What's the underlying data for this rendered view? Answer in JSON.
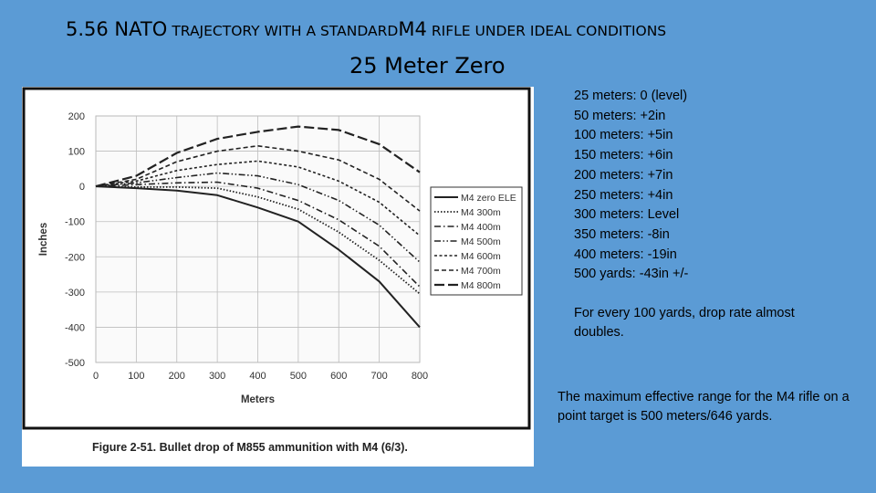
{
  "title": {
    "part1": "5.56 NATO",
    "part2": "TRAJECTORY WITH A STANDARD",
    "part3": "M4",
    "part4": "RIFLE UNDER IDEAL CONDITIONS"
  },
  "subtitle": "25 Meter Zero",
  "notes": {
    "drops": [
      "25 meters: 0 (level)",
      "50 meters: +2in",
      "100 meters: +5in",
      "150 meters: +6in",
      "200 meters: +7in",
      "250 meters: +4in",
      "300 meters: Level",
      "350 meters: -8in",
      "400 meters: -19in",
      "500 yards: -43in +/-"
    ],
    "drop_rate": "For every 100 yards, drop rate almost doubles.",
    "effective_range": "The maximum effective range for the M4 rifle on a point target is 500 meters/646 yards."
  },
  "chart_data": {
    "type": "line",
    "title": "",
    "caption": "Figure 2-51. Bullet drop of M855 ammunition with M4 (6/3).",
    "xlabel": "Meters",
    "ylabel": "Inches",
    "xlim": [
      0,
      800
    ],
    "ylim": [
      -500,
      200
    ],
    "x_ticks": [
      "0",
      "100",
      "200",
      "300",
      "400",
      "500",
      "600",
      "700",
      "800"
    ],
    "y_ticks": [
      "200",
      "100",
      "0",
      "-100",
      "-200",
      "-300",
      "-400",
      "-500"
    ],
    "grid": true,
    "legend": "right",
    "x": [
      0,
      100,
      200,
      300,
      400,
      500,
      600,
      700,
      800
    ],
    "series": [
      {
        "name": "M4 zero ELE",
        "style": "solid",
        "values": [
          0,
          -5,
          -12,
          -25,
          -60,
          -100,
          -180,
          -270,
          -400
        ]
      },
      {
        "name": "M4 300m",
        "style": "dotted",
        "values": [
          0,
          -2,
          -2,
          -5,
          -30,
          -65,
          -130,
          -210,
          -305
        ]
      },
      {
        "name": "M4 400m",
        "style": "dashdot",
        "values": [
          0,
          5,
          10,
          12,
          -5,
          -40,
          -95,
          -170,
          -285
        ]
      },
      {
        "name": "M4 500m",
        "style": "dashdotdot",
        "values": [
          0,
          10,
          25,
          38,
          30,
          5,
          -40,
          -110,
          -215
        ]
      },
      {
        "name": "M4 600m",
        "style": "shortdash",
        "values": [
          0,
          15,
          45,
          62,
          72,
          55,
          15,
          -45,
          -140
        ]
      },
      {
        "name": "M4 700m",
        "style": "mediumdash",
        "values": [
          0,
          20,
          70,
          100,
          115,
          100,
          75,
          20,
          -70
        ]
      },
      {
        "name": "M4 800m",
        "style": "longdash",
        "values": [
          0,
          30,
          95,
          135,
          155,
          170,
          160,
          120,
          40
        ]
      }
    ]
  }
}
